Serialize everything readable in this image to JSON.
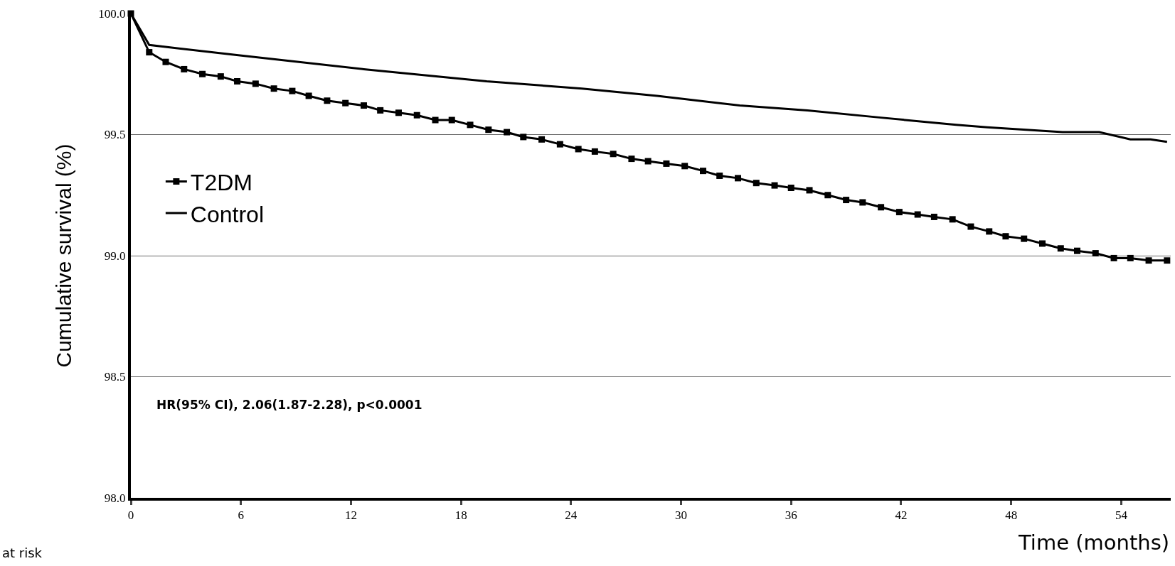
{
  "chart_data": {
    "type": "line",
    "xlabel": "Time (months)",
    "ylabel": "Cumulative survival (%)",
    "xlim": [
      0,
      56.7
    ],
    "xticks": [
      0,
      6,
      12,
      18,
      24,
      30,
      36,
      42,
      48,
      54
    ],
    "ylim": [
      98.0,
      100.0
    ],
    "yticks": [
      {
        "value": 98.0,
        "label": "98.0"
      },
      {
        "value": 98.5,
        "label": "98.5"
      },
      {
        "value": 99.0,
        "label": "99.0"
      },
      {
        "value": 99.5,
        "label": "99.5"
      },
      {
        "value": 100.0,
        "label": "100.0"
      }
    ],
    "grid": "y",
    "legend": "left",
    "series": [
      {
        "name": "T2DM",
        "color": "#000000",
        "marker": "square",
        "x": [
          0,
          1.0,
          1.9,
          2.9,
          3.9,
          4.9,
          5.8,
          6.8,
          7.8,
          8.8,
          9.7,
          10.7,
          11.7,
          12.7,
          13.6,
          14.6,
          15.6,
          16.6,
          17.5,
          18.5,
          19.5,
          20.5,
          21.4,
          22.4,
          23.4,
          24.4,
          25.3,
          26.3,
          27.3,
          28.2,
          29.2,
          30.2,
          31.2,
          32.1,
          33.1,
          34.1,
          35.1,
          36.0,
          37.0,
          38.0,
          39.0,
          39.9,
          40.9,
          41.9,
          42.9,
          43.8,
          44.8,
          45.8,
          46.8,
          47.7,
          48.7,
          49.7,
          50.7,
          51.6,
          52.6,
          53.6,
          54.5,
          55.5,
          56.5
        ],
        "values": [
          100.0,
          99.84,
          99.8,
          99.77,
          99.75,
          99.74,
          99.72,
          99.71,
          99.69,
          99.68,
          99.66,
          99.64,
          99.63,
          99.62,
          99.6,
          99.59,
          99.58,
          99.56,
          99.56,
          99.54,
          99.52,
          99.51,
          99.49,
          99.48,
          99.46,
          99.44,
          99.43,
          99.42,
          99.4,
          99.39,
          99.38,
          99.37,
          99.35,
          99.33,
          99.32,
          99.3,
          99.29,
          99.28,
          99.27,
          99.25,
          99.23,
          99.22,
          99.2,
          99.18,
          99.17,
          99.16,
          99.15,
          99.12,
          99.1,
          99.08,
          99.07,
          99.05,
          99.03,
          99.02,
          99.01,
          98.99,
          98.99,
          98.98,
          98.98
        ]
      },
      {
        "name": "Control",
        "color": "#000000",
        "marker": "none",
        "x": [
          0,
          1.0,
          5.6,
          12.7,
          19.4,
          24.6,
          28.7,
          33.2,
          36.9,
          40.9,
          45.0,
          46.7,
          50.8,
          52.8,
          54.5,
          55.6,
          56.5
        ],
        "values": [
          100.0,
          99.87,
          99.83,
          99.77,
          99.72,
          99.69,
          99.66,
          99.62,
          99.6,
          99.57,
          99.54,
          99.53,
          99.51,
          99.51,
          99.48,
          99.48,
          99.47
        ]
      }
    ],
    "annotations": [
      "HR(95% CI), 2.06(1.87-2.28), p<0.0001",
      "at risk"
    ]
  }
}
